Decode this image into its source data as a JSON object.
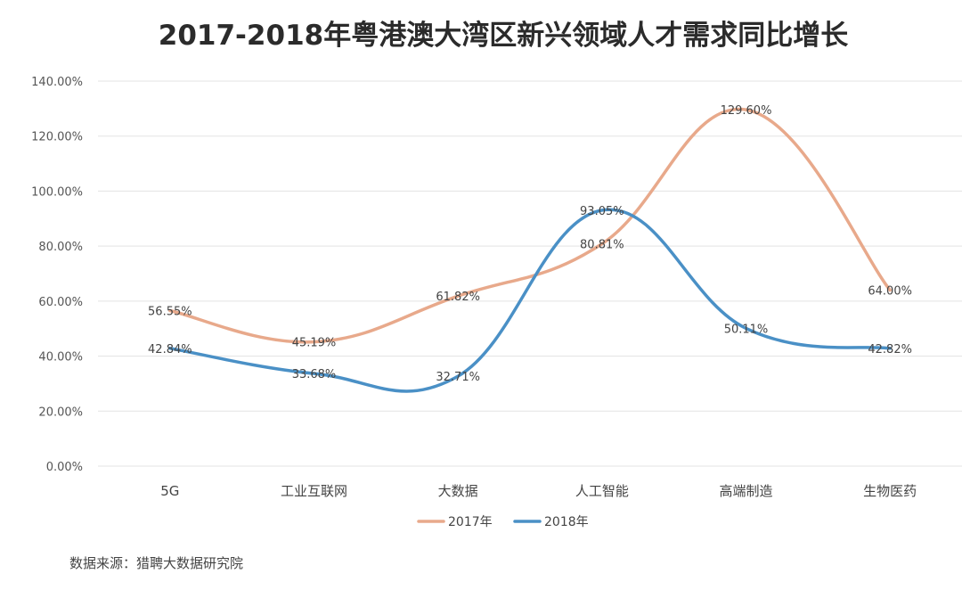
{
  "chart_data": {
    "type": "line",
    "title": "2017-2018年粤港澳大湾区新兴领域人才需求同比增长",
    "categories": [
      "5G",
      "工业互联网",
      "大数据",
      "人工智能",
      "高端制造",
      "生物医药"
    ],
    "series": [
      {
        "name": "2017年",
        "color": "#e8a98b",
        "values": [
          56.55,
          45.19,
          61.82,
          80.81,
          129.6,
          64.0
        ],
        "labels": [
          "56.55%",
          "45.19%",
          "61.82%",
          "80.81%",
          "129.60%",
          "64.00%"
        ]
      },
      {
        "name": "2018年",
        "color": "#4a90c6",
        "values": [
          42.84,
          33.68,
          32.71,
          93.05,
          50.11,
          42.82
        ],
        "labels": [
          "42.84%",
          "33.68%",
          "32.71%",
          "93.05%",
          "50.11%",
          "42.82%"
        ]
      }
    ],
    "ylim": [
      0,
      140
    ],
    "yticks": [
      "0.00%",
      "20.00%",
      "40.00%",
      "60.00%",
      "80.00%",
      "100.00%",
      "120.00%",
      "140.00%"
    ],
    "grid": true,
    "smooth": true,
    "legend_position": "bottom-center",
    "source": "数据来源：猎聘大数据研究院"
  }
}
